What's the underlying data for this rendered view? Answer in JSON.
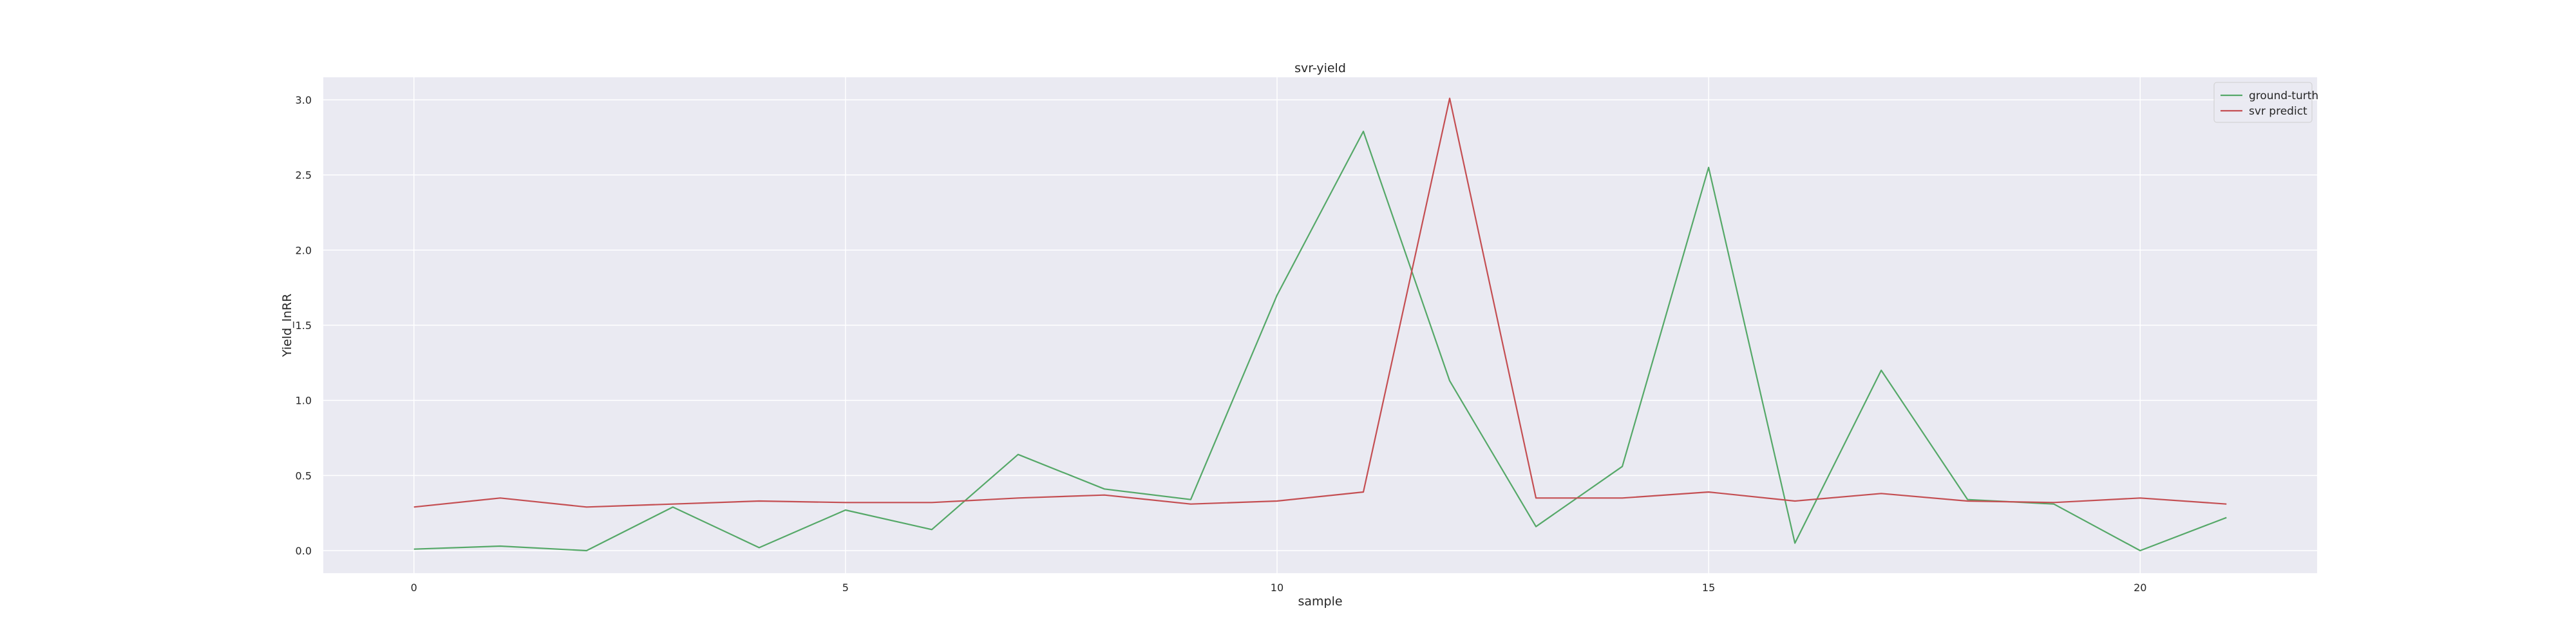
{
  "chart_data": {
    "type": "line",
    "title": "svr-yield",
    "xlabel": "sample",
    "ylabel": "Yield_lnRR",
    "xlim": [
      -1.05,
      22.05
    ],
    "ylim": [
      -0.15,
      3.15
    ],
    "xticks": [
      0,
      5,
      10,
      15,
      20
    ],
    "yticks": [
      0.0,
      0.5,
      1.0,
      1.5,
      2.0,
      2.5,
      3.0
    ],
    "xtick_labels": [
      "0",
      "5",
      "10",
      "15",
      "20"
    ],
    "ytick_labels": [
      "0.0",
      "0.5",
      "1.0",
      "1.5",
      "2.0",
      "2.5",
      "3.0"
    ],
    "grid": true,
    "legend_position": "top-right",
    "x": [
      0,
      1,
      2,
      3,
      4,
      5,
      6,
      7,
      8,
      9,
      10,
      11,
      12,
      13,
      14,
      15,
      16,
      17,
      18,
      19,
      20,
      21
    ],
    "series": [
      {
        "name": "ground-turth",
        "color": "#55a868",
        "values": [
          0.01,
          0.03,
          0.0,
          0.29,
          0.02,
          0.27,
          0.14,
          0.64,
          0.41,
          0.34,
          1.7,
          2.79,
          1.13,
          0.16,
          0.56,
          2.55,
          0.05,
          1.2,
          0.34,
          0.31,
          0.0,
          0.22
        ]
      },
      {
        "name": "svr predict",
        "color": "#c44e52",
        "values": [
          0.29,
          0.35,
          0.29,
          0.31,
          0.33,
          0.32,
          0.32,
          0.35,
          0.37,
          0.31,
          0.33,
          0.39,
          3.01,
          0.35,
          0.35,
          0.39,
          0.33,
          0.38,
          0.33,
          0.32,
          0.35,
          0.31
        ]
      }
    ]
  }
}
